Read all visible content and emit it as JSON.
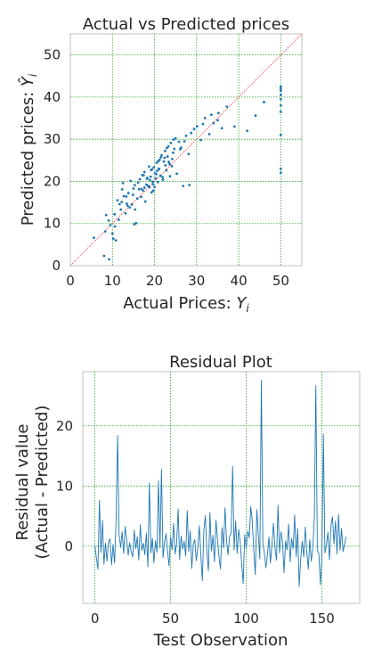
{
  "colors": {
    "marker": "#1f77b4",
    "grid": "#2ca02c",
    "ideal_line": "#ff4d4d",
    "frame": "#cccccc",
    "text": "#262626"
  },
  "chart_data": [
    {
      "type": "scatter",
      "title": "Actual vs Predicted prices",
      "xlabel": "Actual Prices: Y_i",
      "ylabel": "Predicted prices: Ŷ_i",
      "xlim": [
        0,
        55
      ],
      "ylim": [
        0,
        55
      ],
      "xticks": [
        "0",
        "10",
        "20",
        "30",
        "40",
        "50"
      ],
      "yticks": [
        "0",
        "10",
        "20",
        "30",
        "40",
        "50"
      ],
      "grid": true,
      "reference_line": "y = x",
      "x": [
        5.6,
        8,
        8.5,
        9.2,
        10,
        10.5,
        10.8,
        11.2,
        11.5,
        12,
        12.3,
        12.7,
        13.1,
        13.4,
        13.8,
        14.1,
        14.3,
        14.6,
        15,
        15.2,
        15.6,
        15.9,
        16.1,
        16.5,
        16.8,
        17.1,
        17.3,
        17.6,
        17.8,
        18.1,
        18.3,
        18.5,
        18.7,
        18.9,
        19.1,
        19.3,
        19.4,
        19.6,
        19.8,
        20,
        20.1,
        20.3,
        20.5,
        20.6,
        20.8,
        21,
        21.2,
        21.4,
        21.7,
        22,
        22.2,
        22.5,
        22.8,
        23.1,
        23.3,
        23.6,
        23.9,
        24.1,
        24.4,
        24.7,
        25,
        25.3,
        25.8,
        26.3,
        26.8,
        27.5,
        28.1,
        28.7,
        29.4,
        30.1,
        31,
        32,
        33,
        34,
        35,
        36,
        37.2,
        39,
        42,
        44,
        46,
        50,
        50,
        50,
        50,
        50,
        50,
        50,
        50,
        50,
        50,
        9.5,
        12.2,
        13.6,
        15.3,
        16.9,
        17.4,
        18.8,
        19.6,
        20.4,
        21.1,
        21.9,
        22.6,
        23.4,
        24.2,
        14.9,
        16.3,
        19.2,
        20.9,
        22.4,
        23.7,
        26.1,
        27.1,
        31.5,
        33.5,
        35.2,
        12.5,
        13.3,
        15.4,
        17.6,
        18.2,
        19.7,
        21.5,
        22.9,
        24.5,
        28.3,
        8.3,
        9.1,
        11.7,
        10.2,
        10.6
      ],
      "y": [
        6.6,
        2.3,
        12,
        1.5,
        7.6,
        12.2,
        6,
        15.5,
        10.9,
        13.3,
        18.1,
        16.5,
        12.4,
        14.7,
        17.2,
        13.8,
        20.1,
        14.5,
        18.3,
        9.8,
        10.1,
        15.9,
        19.7,
        20.5,
        16.3,
        21.5,
        17.8,
        22.2,
        15.2,
        19.2,
        20.8,
        18.9,
        23.5,
        20.3,
        21.1,
        17.4,
        22.8,
        19.9,
        23.3,
        18.7,
        21.9,
        20.7,
        24.4,
        22.5,
        19.8,
        23,
        25.1,
        21.3,
        26.2,
        20.4,
        24.7,
        27.2,
        22.6,
        25.9,
        28.3,
        24.1,
        29.1,
        23.6,
        26.8,
        27.7,
        30.2,
        21.8,
        29.4,
        28,
        18.9,
        30.8,
        26.5,
        31.5,
        32.4,
        33.1,
        29.8,
        35,
        31.2,
        33.8,
        34.5,
        32.6,
        37.7,
        33,
        32,
        35.6,
        38.8,
        22,
        23,
        31,
        36.5,
        38,
        39.5,
        41.5,
        42.5,
        42,
        40.5,
        9.6,
        15.1,
        14.2,
        19.1,
        18.2,
        21.4,
        18.6,
        19.3,
        21.7,
        22.9,
        21,
        23.8,
        24.6,
        25.3,
        16.8,
        18.1,
        22.7,
        24.8,
        25.6,
        21.2,
        27.6,
        29.5,
        33.6,
        35.8,
        36.2,
        19.6,
        16.4,
        13.3,
        18.5,
        20.6,
        17.8,
        25.7,
        27.9,
        29.9,
        19.1,
        8.1,
        10.7,
        14.6,
        6.4,
        9.3
      ]
    },
    {
      "type": "line",
      "title": "Residual Plot",
      "xlabel": "Test Observation",
      "ylabel": [
        "Residual value",
        "(Actual - Predicted)"
      ],
      "xlim": [
        -8,
        175
      ],
      "ylim": [
        -9.5,
        29
      ],
      "xticks": [
        "0",
        "50",
        "100",
        "150"
      ],
      "yticks": [
        "0",
        "10",
        "20"
      ],
      "grid": true,
      "values": [
        0.2,
        -2,
        -3.8,
        7.6,
        -1,
        4.3,
        -3,
        0.5,
        -2.5,
        0.8,
        1.2,
        -3.1,
        0.3,
        -2.8,
        4.5,
        18.4,
        1.8,
        -0.2,
        2.4,
        -1.2,
        3.3,
        1.1,
        -1.5,
        0.6,
        -0.9,
        -1.8,
        2.7,
        -0.4,
        1.6,
        -2.3,
        3.6,
        -0.7,
        0.5,
        -1.4,
        2.2,
        -3.4,
        10.5,
        -1.1,
        1.3,
        -2.8,
        0.9,
        -1,
        10.9,
        -0.3,
        12.8,
        -1.9,
        0.6,
        2.1,
        -0.8,
        -3.3,
        1.5,
        -0.6,
        3.8,
        -1.3,
        0.4,
        6.2,
        -2.2,
        1.7,
        -0.5,
        0.8,
        -1.6,
        5.9,
        -0.9,
        2.6,
        -3.7,
        0.3,
        1.1,
        -2.4,
        -0.2,
        3.4,
        -1.5,
        -5.7,
        2.7,
        5.1,
        -1,
        -4.1,
        5.6,
        -0.8,
        1.8,
        -2.6,
        4.3,
        1.2,
        -1.7,
        -3.8,
        3.1,
        -0.3,
        6.4,
        0.9,
        -1.4,
        1.6,
        2.2,
        13.3,
        -0.6,
        4.2,
        -1.2,
        2.8,
        0.7,
        -2.9,
        -6.2,
        1.9,
        -0.3,
        2.5,
        1.4,
        6.6,
        4.1,
        -0.8,
        -4.7,
        6.1,
        1.8,
        -2.1,
        27.5,
        0.4,
        -1.1,
        -3.6,
        -1.5,
        1.5,
        -2.8,
        0.3,
        3.8,
        -0.2,
        -2.3,
        6.8,
        -1.1,
        2.4,
        0.6,
        -4.4,
        0.9,
        -0.6,
        3.7,
        -2.6,
        1.3,
        -0.4,
        5.2,
        -1.7,
        2.9,
        -6.7,
        -2.1,
        0.8,
        -1.8,
        3.2,
        -0.9,
        -3.8,
        1.1,
        -2.5,
        -0.3,
        4.6,
        26.7,
        -0.6,
        -1.3,
        -6.4,
        -1.8,
        18.6,
        -1.1,
        0.2,
        2.3,
        -2.2,
        3.5,
        4.9,
        0.4,
        4.2,
        -1.3,
        5.3,
        -0.7,
        2.9,
        -0.9,
        0.4,
        1.6
      ]
    }
  ]
}
